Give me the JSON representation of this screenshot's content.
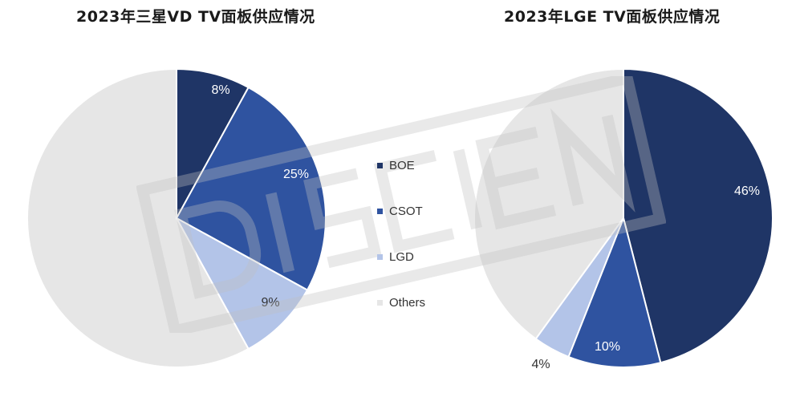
{
  "colors": {
    "BOE": "#1f3566",
    "CSOT": "#2f53a0",
    "LGD": "#b3c4e8",
    "Others": "#e6e6e6"
  },
  "legend": {
    "items": [
      {
        "label": "BOE",
        "color": "#1f3566"
      },
      {
        "label": "CSOT",
        "color": "#2f53a0"
      },
      {
        "label": "LGD",
        "color": "#b3c4e8"
      },
      {
        "label": "Others",
        "color": "#e6e6e6"
      }
    ]
  },
  "watermark": {
    "text": "DISCIEN"
  },
  "chart_data": [
    {
      "type": "pie",
      "title": "2023年三星VD TV面板供应情况",
      "categories": [
        "BOE",
        "CSOT",
        "LGD",
        "Others"
      ],
      "values": [
        8,
        25,
        9,
        58
      ],
      "data_labels": [
        "8%",
        "25%",
        "9%",
        ""
      ]
    },
    {
      "type": "pie",
      "title": "2023年LGE TV面板供应情况",
      "categories": [
        "BOE",
        "CSOT",
        "LGD",
        "Others"
      ],
      "values": [
        46,
        10,
        4,
        40
      ],
      "data_labels": [
        "46%",
        "10%",
        "4%",
        ""
      ]
    }
  ]
}
